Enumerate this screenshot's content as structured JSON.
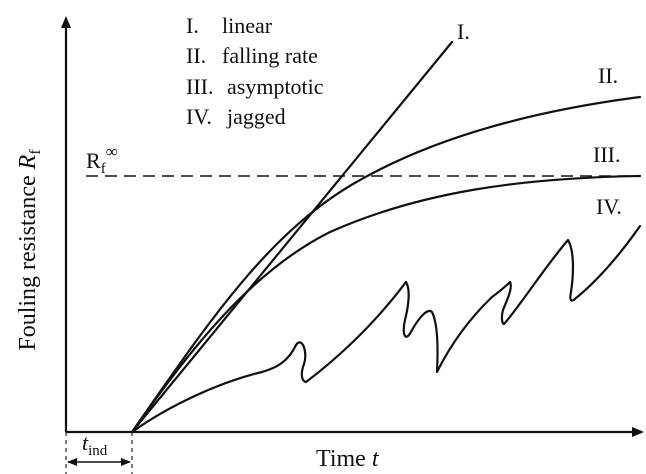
{
  "axes": {
    "y_label_main": "Fouling resistance ",
    "y_label_var": "R",
    "y_label_sub": "f",
    "x_label_main": "Time ",
    "x_label_var": "t"
  },
  "asymptote": {
    "label_main": "R",
    "label_sub": "f",
    "label_sup": "∞"
  },
  "induction": {
    "label_var": "t",
    "label_sub": "ind"
  },
  "legend": [
    {
      "numeral": "I.",
      "text": "linear"
    },
    {
      "numeral": "II.",
      "text": "falling rate"
    },
    {
      "numeral": "III.",
      "text": "asymptotic"
    },
    {
      "numeral": "IV.",
      "text": "jagged"
    }
  ],
  "curve_labels": {
    "linear": "I.",
    "falling_rate": "II.",
    "asymptotic": "III.",
    "jagged": "IV."
  }
}
